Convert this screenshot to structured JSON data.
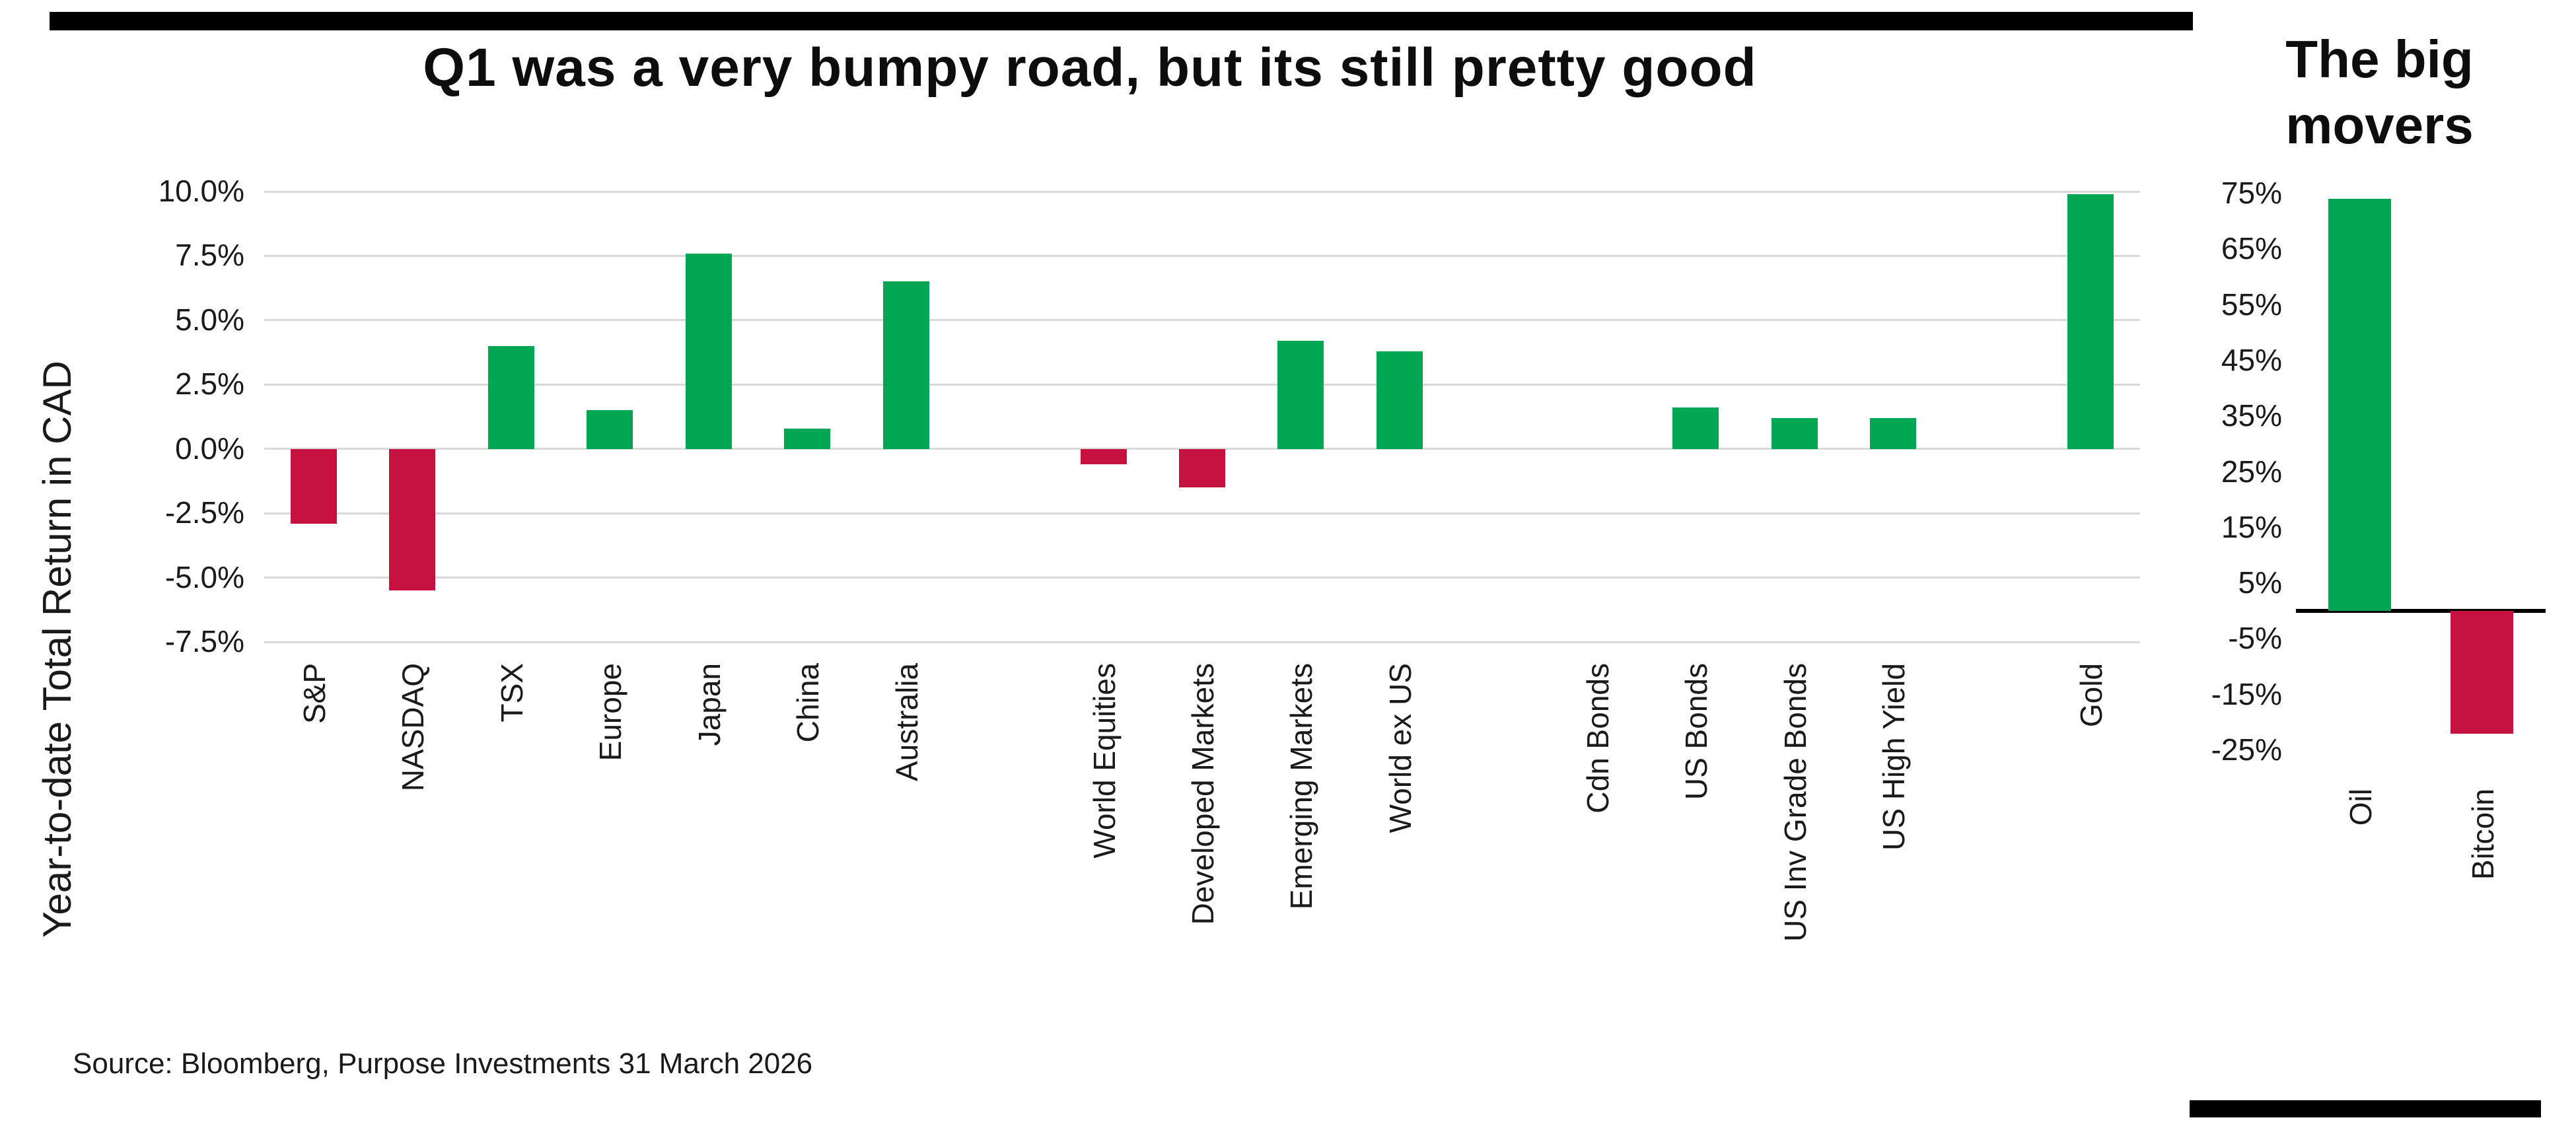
{
  "page": {
    "source": "Source: Bloomberg, Purpose Investments 31 March 2026"
  },
  "colors": {
    "positive": "#00A651",
    "negative": "#C6123F",
    "gridline": "#D9D9D9",
    "axis": "#000000"
  },
  "chart_data": [
    {
      "type": "bar",
      "title": "Q1 was a very bumpy road, but its still pretty good",
      "ylabel": "Year-to-date Total Return in CAD",
      "xlabel": "",
      "ylim": [
        -7.5,
        10.0
      ],
      "yticks": [
        10.0,
        7.5,
        5.0,
        2.5,
        0.0,
        -2.5,
        -5.0,
        -7.5
      ],
      "ytick_labels": [
        "10.0%",
        "7.5%",
        "5.0%",
        "2.5%",
        "0.0%",
        "-2.5%",
        "-5.0%",
        "-7.5%"
      ],
      "grid": true,
      "legend": "none",
      "categories": [
        "S&P",
        "NASDAQ",
        "TSX",
        "Europe",
        "Japan",
        "China",
        "Australia",
        "World Equities",
        "Developed Markets",
        "Emerging Markets",
        "World ex US",
        "Cdn Bonds",
        "US Bonds",
        "US Inv Grade Bonds",
        "US High Yield",
        "Gold"
      ],
      "values": [
        -2.9,
        -5.5,
        4.0,
        1.5,
        7.6,
        0.8,
        6.5,
        -0.6,
        -1.5,
        4.2,
        3.8,
        0.0,
        1.6,
        1.2,
        1.2,
        9.9
      ],
      "gaps_after_indices": [
        6,
        10,
        14
      ],
      "color_rule": "green if value >= 0 else crimson"
    },
    {
      "type": "bar",
      "title": "The big movers",
      "ylabel": "",
      "xlabel": "",
      "ylim": [
        -25,
        75
      ],
      "yticks": [
        75,
        65,
        55,
        45,
        35,
        25,
        15,
        5,
        -5,
        -15,
        -25
      ],
      "ytick_labels": [
        "75%",
        "65%",
        "55%",
        "45%",
        "35%",
        "25%",
        "15%",
        "5%",
        "-5%",
        "-15%",
        "-25%"
      ],
      "grid": false,
      "legend": "none",
      "categories": [
        "Oil",
        "Bitcoin"
      ],
      "values": [
        74,
        -22
      ],
      "color_rule": "green if value >= 0 else crimson"
    }
  ]
}
